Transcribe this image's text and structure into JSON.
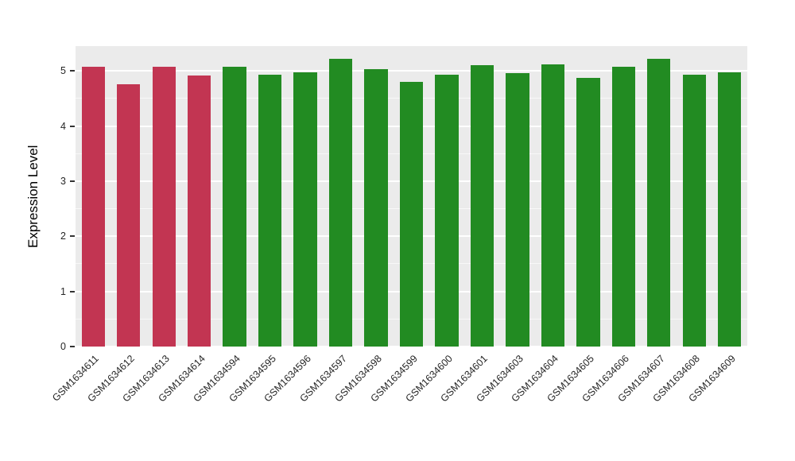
{
  "chart_data": {
    "type": "bar",
    "title": "",
    "xlabel": "",
    "ylabel": "Expression Level",
    "ylim": [
      0,
      5.45
    ],
    "y_ticks": [
      0,
      1,
      2,
      3,
      4,
      5
    ],
    "grid": true,
    "legend": "none",
    "panel_background": "#EBEBEB",
    "grid_color": "#FFFFFF",
    "colors": {
      "highlight": "#C23552",
      "default": "#228B22"
    },
    "categories": [
      "GSM1634611",
      "GSM1634612",
      "GSM1634613",
      "GSM1634614",
      "GSM1634594",
      "GSM1634595",
      "GSM1634596",
      "GSM1634597",
      "GSM1634598",
      "GSM1634599",
      "GSM1634600",
      "GSM1634601",
      "GSM1634603",
      "GSM1634604",
      "GSM1634605",
      "GSM1634606",
      "GSM1634607",
      "GSM1634608",
      "GSM1634609"
    ],
    "values": [
      5.08,
      4.76,
      5.08,
      4.91,
      5.08,
      4.93,
      4.97,
      5.22,
      5.03,
      4.8,
      4.93,
      5.1,
      4.96,
      5.12,
      4.88,
      5.08,
      5.22,
      4.93,
      4.97
    ],
    "groups": [
      "highlight",
      "highlight",
      "highlight",
      "highlight",
      "default",
      "default",
      "default",
      "default",
      "default",
      "default",
      "default",
      "default",
      "default",
      "default",
      "default",
      "default",
      "default",
      "default",
      "default"
    ]
  }
}
